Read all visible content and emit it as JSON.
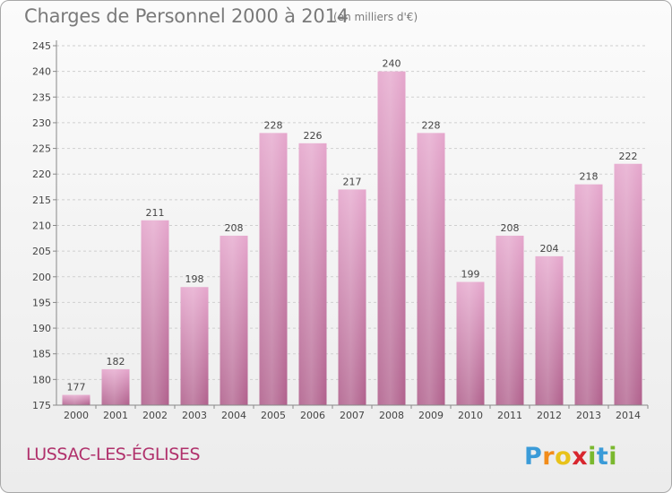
{
  "header": {
    "title": "Charges de Personnel 2000 à 2014",
    "subtitle": "(en milliers d'€)"
  },
  "footer": {
    "place": "LUSSAC-LES-ÉGLISES",
    "logo_text": "Proxiti"
  },
  "colors": {
    "bar_top": "#e5a6cc",
    "bar_bottom": "#b0608c",
    "place_text": "#b0306b"
  },
  "chart_data": {
    "type": "bar",
    "title": "Charges de Personnel 2000 à 2014",
    "subtitle": "(en milliers d'€)",
    "categories": [
      "2000",
      "2001",
      "2002",
      "2003",
      "2004",
      "2005",
      "2006",
      "2007",
      "2008",
      "2009",
      "2010",
      "2011",
      "2012",
      "2013",
      "2014"
    ],
    "values": [
      177,
      182,
      211,
      198,
      208,
      228,
      226,
      217,
      240,
      228,
      199,
      208,
      204,
      218,
      222
    ],
    "ylim": [
      175,
      245
    ],
    "yticks": [
      175,
      180,
      185,
      190,
      195,
      200,
      205,
      210,
      215,
      220,
      225,
      230,
      235,
      240,
      245
    ],
    "grid": true,
    "data_labels": true
  }
}
